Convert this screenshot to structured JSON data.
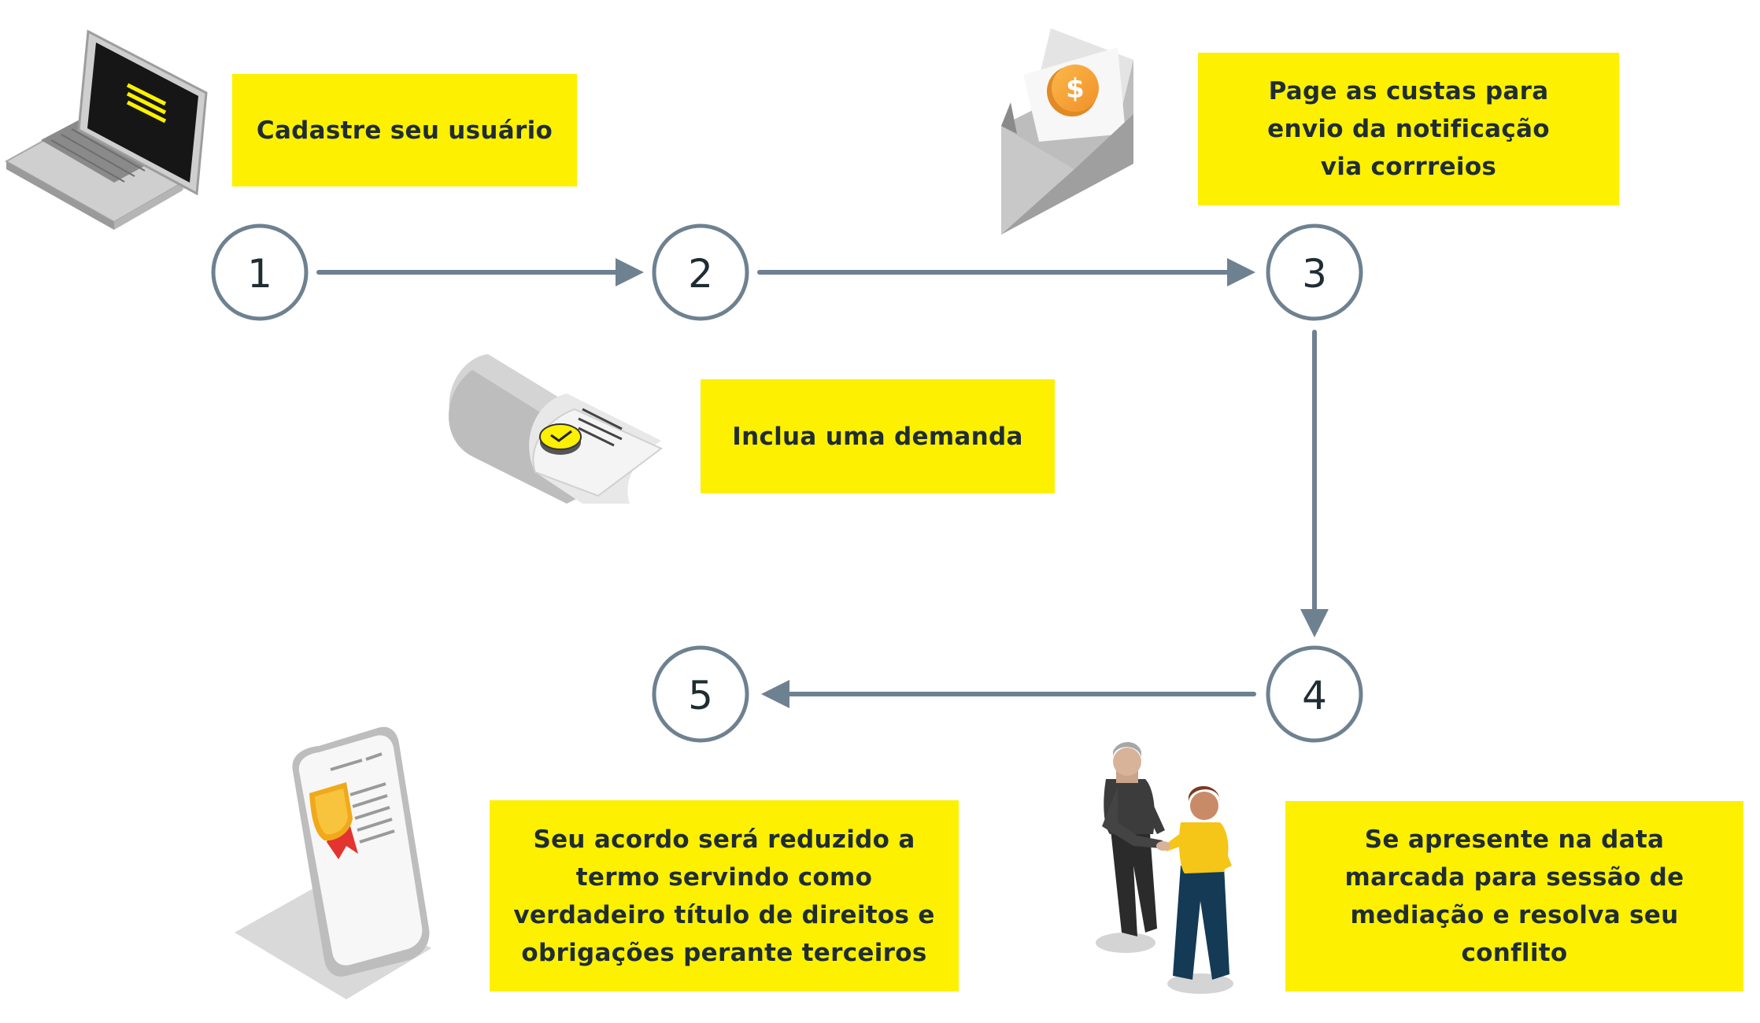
{
  "steps": [
    {
      "number": "1",
      "text": "Cadastre seu usuário",
      "icon": "laptop-icon"
    },
    {
      "number": "2",
      "text": "Inclua uma demanda",
      "icon": "document-check-icon"
    },
    {
      "number": "3",
      "text": "Page as custas para envio da notificação via corrreios",
      "icon": "envelope-coin-icon"
    },
    {
      "number": "4",
      "text": "Se apresente na data marcada para sessão de mediação e resolva seu conflito",
      "icon": "handshake-icon"
    },
    {
      "number": "5",
      "text": "Seu acordo será reduzido a termo servindo como verdadeiro título de direitos e obrigações perante terceiros",
      "icon": "certificate-tablet-icon"
    }
  ],
  "colors": {
    "note": "#fdf001",
    "circle": "#6e8191",
    "arrow": "#6e8191",
    "text": "#1f2d33"
  }
}
